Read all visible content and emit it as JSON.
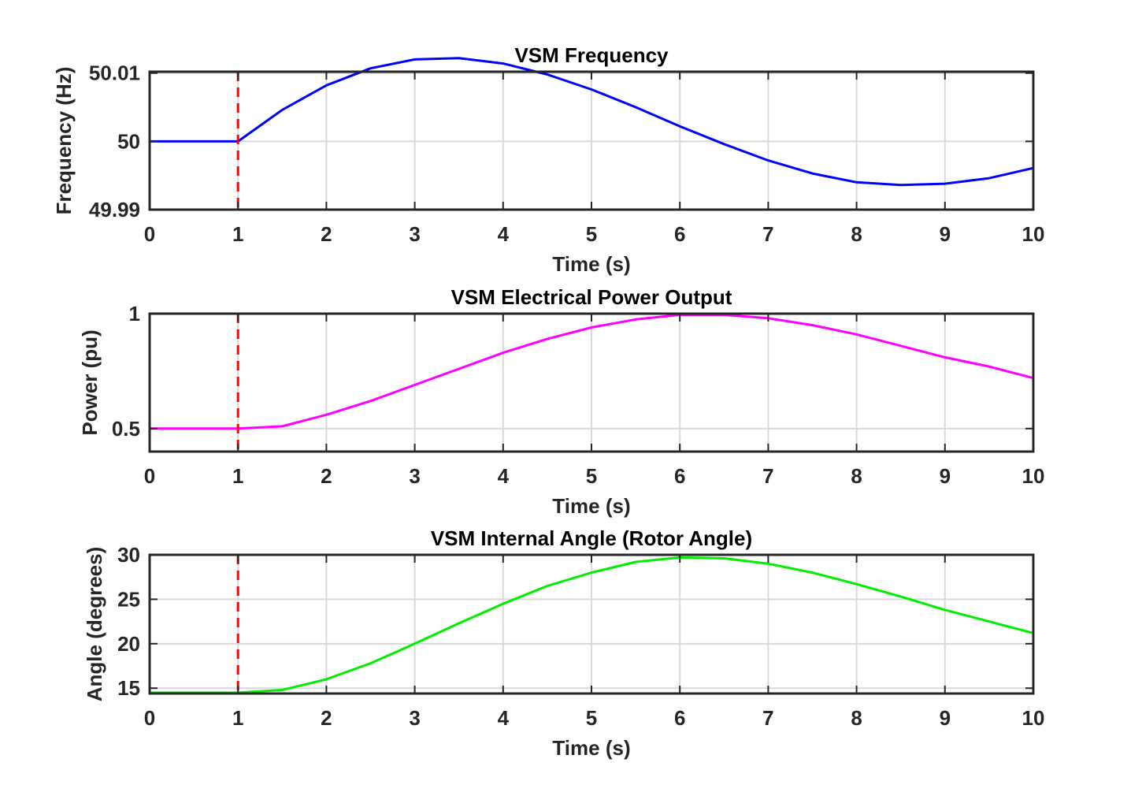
{
  "figure": {
    "background": "#ffffff",
    "axis_color": "#262626",
    "grid_color": "#d9d9d9",
    "marker_color": "#ff0000"
  },
  "chart_data": [
    {
      "type": "line",
      "title": "VSM Frequency",
      "xlabel": "Time (s)",
      "ylabel": "Frequency (Hz)",
      "xlim": [
        0,
        10
      ],
      "ylim": [
        49.99,
        50.0102
      ],
      "xticks": [
        0,
        1,
        2,
        3,
        4,
        5,
        6,
        7,
        8,
        9,
        10
      ],
      "xtick_labels": [
        "0",
        "1",
        "2",
        "3",
        "4",
        "5",
        "6",
        "7",
        "8",
        "9",
        "10"
      ],
      "yticks": [
        49.99,
        50.0,
        50.01
      ],
      "ytick_labels": [
        "49.99",
        "50",
        "50.01"
      ],
      "grid": true,
      "event_line": {
        "x": 1,
        "style": "dashed",
        "color": "#ff0000"
      },
      "series": [
        {
          "color": "#0000ff",
          "x": [
            0,
            0.5,
            1,
            1.5,
            2,
            2.5,
            3,
            3.5,
            4,
            4.5,
            5,
            5.5,
            6,
            6.5,
            7,
            7.5,
            8,
            8.5,
            9,
            9.5,
            10
          ],
          "y": [
            50.0,
            50.0,
            50.0,
            50.0046,
            50.0082,
            50.0107,
            50.012,
            50.0122,
            50.0114,
            50.0098,
            50.0076,
            50.005,
            50.0022,
            49.9996,
            49.9972,
            49.9953,
            49.994,
            49.9936,
            49.9938,
            49.9946,
            49.9961
          ]
        }
      ]
    },
    {
      "type": "line",
      "title": "VSM Electrical Power Output",
      "xlabel": "Time (s)",
      "ylabel": "Power (pu)",
      "xlim": [
        0,
        10
      ],
      "ylim": [
        0.4,
        1.0
      ],
      "xticks": [
        0,
        1,
        2,
        3,
        4,
        5,
        6,
        7,
        8,
        9,
        10
      ],
      "xtick_labels": [
        "0",
        "1",
        "2",
        "3",
        "4",
        "5",
        "6",
        "7",
        "8",
        "9",
        "10"
      ],
      "yticks": [
        0.5,
        1.0
      ],
      "ytick_labels": [
        "0.5",
        "1"
      ],
      "grid": true,
      "event_line": {
        "x": 1,
        "style": "dashed",
        "color": "#ff0000"
      },
      "series": [
        {
          "color": "#ff00ff",
          "x": [
            0,
            0.5,
            1,
            1.5,
            2,
            2.5,
            3,
            3.5,
            4,
            4.5,
            5,
            5.5,
            6,
            6.5,
            7,
            7.5,
            8,
            8.5,
            9,
            9.5,
            10
          ],
          "y": [
            0.5,
            0.5,
            0.5,
            0.51,
            0.56,
            0.62,
            0.69,
            0.76,
            0.83,
            0.89,
            0.94,
            0.975,
            0.995,
            0.995,
            0.98,
            0.95,
            0.91,
            0.86,
            0.81,
            0.77,
            0.72
          ]
        }
      ]
    },
    {
      "type": "line",
      "title": "VSM Internal Angle (Rotor Angle)",
      "xlabel": "Time (s)",
      "ylabel": "Angle (degrees)",
      "xlim": [
        0,
        10
      ],
      "ylim": [
        14.4,
        30.0
      ],
      "xticks": [
        0,
        1,
        2,
        3,
        4,
        5,
        6,
        7,
        8,
        9,
        10
      ],
      "xtick_labels": [
        "0",
        "1",
        "2",
        "3",
        "4",
        "5",
        "6",
        "7",
        "8",
        "9",
        "10"
      ],
      "yticks": [
        15,
        20,
        25,
        30
      ],
      "ytick_labels": [
        "15",
        "20",
        "25",
        "30"
      ],
      "grid": true,
      "event_line": {
        "x": 1,
        "style": "dashed",
        "color": "#ff0000"
      },
      "series": [
        {
          "color": "#00ee00",
          "x": [
            0,
            0.5,
            1,
            1.5,
            2,
            2.5,
            3,
            3.5,
            4,
            4.5,
            5,
            5.5,
            6,
            6.5,
            7,
            7.5,
            8,
            8.5,
            9,
            9.5,
            10
          ],
          "y": [
            14.5,
            14.5,
            14.5,
            14.8,
            16.0,
            17.8,
            20.0,
            22.3,
            24.5,
            26.5,
            28.0,
            29.2,
            29.7,
            29.6,
            29.0,
            28.0,
            26.7,
            25.3,
            23.8,
            22.5,
            21.2
          ]
        }
      ]
    }
  ]
}
